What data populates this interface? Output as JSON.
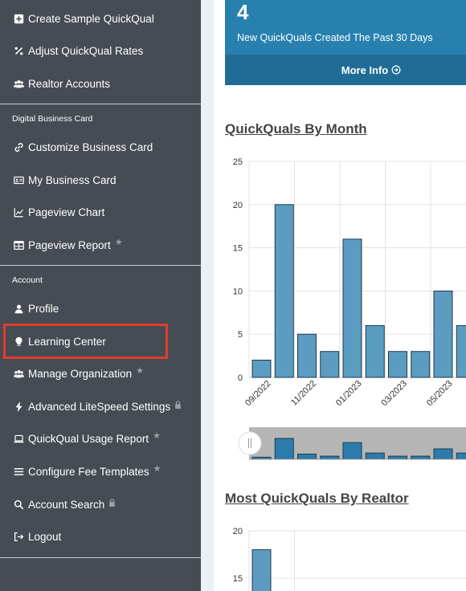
{
  "sidebar": {
    "top_items": [
      {
        "label": "Create Sample QuickQual",
        "icon": "plus-square-icon"
      },
      {
        "label": "Adjust QuickQual Rates",
        "icon": "percent-icon"
      },
      {
        "label": "Realtor Accounts",
        "icon": "users-icon"
      }
    ],
    "section_dbc": "Digital Business Card",
    "dbc_items": [
      {
        "label": "Customize Business Card",
        "icon": "link-icon"
      },
      {
        "label": "My Business Card",
        "icon": "id-card-icon"
      },
      {
        "label": "Pageview Chart",
        "icon": "line-chart-icon"
      },
      {
        "label": "Pageview Report",
        "icon": "table-icon",
        "badge": "star"
      }
    ],
    "section_account": "Account",
    "account_items": [
      {
        "label": "Profile",
        "icon": "user-icon"
      },
      {
        "label": "Learning Center",
        "icon": "lightbulb-icon",
        "highlighted": true
      },
      {
        "label": "Manage Organization",
        "icon": "users-icon",
        "badge": "star"
      },
      {
        "label": "Advanced LiteSpeed Settings",
        "icon": "bolt-icon",
        "badge": "lock"
      },
      {
        "label": "QuickQual Usage Report",
        "icon": "laptop-icon",
        "badge": "star"
      },
      {
        "label": "Configure Fee Templates",
        "icon": "list-icon",
        "badge": "star"
      },
      {
        "label": "Account Search",
        "icon": "search-icon",
        "badge": "lock"
      },
      {
        "label": "Logout",
        "icon": "logout-icon"
      }
    ]
  },
  "info_card": {
    "value": "4",
    "text": "New QuickQuals Created The Past 30 Days",
    "more_label": "More Info",
    "more_icon": "arrow-circle-right-icon",
    "color": "#2880ae"
  },
  "chart_data": [
    {
      "type": "bar",
      "title": "QuickQuals By Month",
      "x_tick_labels": [
        "09/2022",
        "11/2022",
        "01/2023",
        "03/2023",
        "05/2023"
      ],
      "values": [
        2,
        20,
        5,
        3,
        16,
        6,
        3,
        3,
        10,
        6
      ],
      "y_ticks": [
        0,
        5,
        10,
        15,
        20,
        25
      ],
      "ylim": [
        0,
        25
      ],
      "bar_color": "#5b9cc0",
      "grid": true
    },
    {
      "type": "bar",
      "title": "Most QuickQuals By Realtor",
      "values": [
        18
      ],
      "y_ticks": [
        15,
        20
      ],
      "bar_color": "#5b9cc0",
      "grid": true
    }
  ]
}
